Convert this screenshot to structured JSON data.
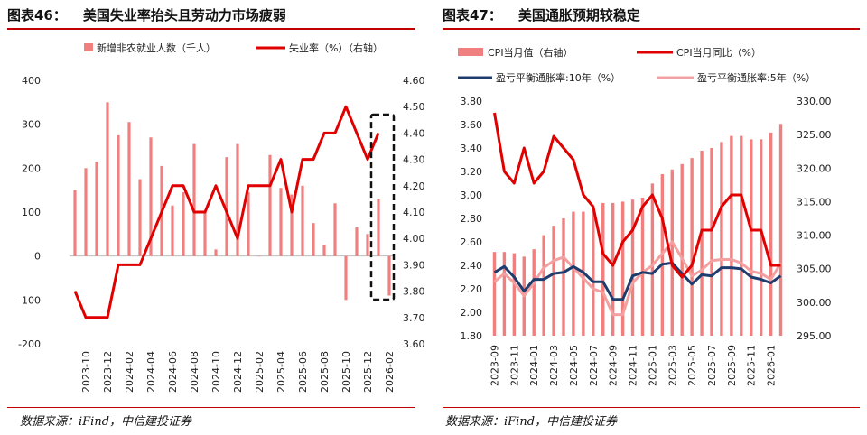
{
  "left": {
    "title_num": "图表46：",
    "title_text": "美国失业率抬头且劳动力市场疲弱",
    "source": "数据来源：iFind，中信建投证券"
  },
  "right": {
    "title_num": "图表47：",
    "title_text": "美国通胀预期较稳定",
    "source": "数据来源：iFind，中信建投证券"
  },
  "colors": {
    "red": "#e00000",
    "pink": "#f08080",
    "navy": "#1f3c6e",
    "light_red": "#f4a0a0",
    "accent_rule": "#c00000"
  },
  "chart_data": [
    {
      "type": "bar+line",
      "legend": [
        "新增非农就业人数（千人）",
        "失业率（%）（右轴）"
      ],
      "categories": [
        "2023-09",
        "2023-10",
        "2023-11",
        "2023-12",
        "2024-01",
        "2024-02",
        "2024-03",
        "2024-04",
        "2024-05",
        "2024-06",
        "2024-07",
        "2024-08",
        "2024-09",
        "2024-10",
        "2024-11",
        "2024-12",
        "2025-01",
        "2025-02",
        "2025-03",
        "2025-04",
        "2025-05",
        "2025-06",
        "2025-07",
        "2025-08",
        "2025-09",
        "2025-10",
        "2025-11",
        "2025-12",
        "2026-01",
        "2026-02"
      ],
      "x_tick_labels": [
        "2023-10",
        "2023-12",
        "2024-02",
        "2024-04",
        "2024-06",
        "2024-08",
        "2024-10",
        "2024-12",
        "2025-02",
        "2025-04",
        "2025-06",
        "2025-08",
        "2025-10",
        "2025-12",
        "2026-02"
      ],
      "bar_series": {
        "name": "新增非农就业人数（千人）",
        "axis": "left",
        "values": [
          150,
          200,
          215,
          350,
          275,
          305,
          175,
          270,
          205,
          115,
          145,
          255,
          100,
          15,
          225,
          255,
          145,
          0,
          230,
          155,
          140,
          160,
          75,
          25,
          120,
          -100,
          65,
          50,
          130,
          -90
        ]
      },
      "line_series": {
        "name": "失业率（%）（右轴）",
        "axis": "right",
        "values": [
          3.8,
          3.7,
          3.7,
          3.7,
          3.9,
          3.9,
          3.9,
          4.0,
          4.1,
          4.2,
          4.2,
          4.1,
          4.1,
          4.2,
          4.1,
          4.0,
          4.2,
          4.2,
          4.2,
          4.3,
          4.1,
          4.3,
          4.3,
          4.4,
          4.4,
          4.5,
          4.4,
          4.3,
          4.4,
          null
        ]
      },
      "y_left": {
        "min": -200,
        "max": 400,
        "ticks": [
          "-200",
          "-100",
          "0",
          "100",
          "200",
          "300",
          "400"
        ]
      },
      "y_right": {
        "min": 3.6,
        "max": 4.6,
        "ticks": [
          "3.60",
          "3.70",
          "3.80",
          "3.90",
          "4.00",
          "4.10",
          "4.20",
          "4.30",
          "4.40",
          "4.50",
          "4.60"
        ]
      },
      "annotation": "dashed box highlighting last two months"
    },
    {
      "type": "bar+line",
      "legend": [
        "CPI当月值（右轴）",
        "CPI当月同比（%）",
        "盈亏平衡通胀率:10年（%）",
        "盈亏平衡通胀率:5年（%）"
      ],
      "categories": [
        "2023-09",
        "2023-10",
        "2023-11",
        "2023-12",
        "2024-01",
        "2024-02",
        "2024-03",
        "2024-04",
        "2024-05",
        "2024-06",
        "2024-07",
        "2024-08",
        "2024-09",
        "2024-10",
        "2024-11",
        "2024-12",
        "2025-01",
        "2025-02",
        "2025-03",
        "2025-04",
        "2025-05",
        "2025-06",
        "2025-07",
        "2025-08",
        "2025-09",
        "2025-10",
        "2025-11",
        "2025-12",
        "2026-01",
        "2026-02"
      ],
      "x_tick_labels": [
        "2023-09",
        "2023-11",
        "2024-01",
        "2024-03",
        "2024-05",
        "2024-07",
        "2024-09",
        "2024-11",
        "2025-01",
        "2025-03",
        "2025-05",
        "2025-07",
        "2025-09",
        "2025-11",
        "2026-01"
      ],
      "bar_series": {
        "name": "CPI当月值（右轴）",
        "axis": "right",
        "values": [
          307.5,
          307.5,
          307.3,
          306.8,
          307.9,
          310.0,
          311.4,
          312.5,
          313.5,
          313.5,
          313.6,
          314.8,
          314.8,
          315.0,
          315.3,
          315.6,
          317.7,
          319.1,
          319.8,
          320.6,
          321.5,
          322.6,
          323.0,
          323.9,
          324.8,
          324.8,
          324.3,
          324.3,
          325.3,
          326.6
        ]
      },
      "line_series": [
        {
          "name": "CPI当月同比（%）",
          "axis": "left",
          "values": [
            3.7,
            3.2,
            3.1,
            3.4,
            3.1,
            3.2,
            3.5,
            3.4,
            3.3,
            3.0,
            2.9,
            2.5,
            2.4,
            2.6,
            2.7,
            2.9,
            3.0,
            2.8,
            2.4,
            2.3,
            2.4,
            2.7,
            2.7,
            2.9,
            3.0,
            3.0,
            2.7,
            2.7,
            2.4,
            2.4
          ]
        },
        {
          "name": "盈亏平衡通胀率:10年（%）",
          "axis": "left",
          "values": [
            2.34,
            2.39,
            2.3,
            2.18,
            2.28,
            2.28,
            2.33,
            2.34,
            2.39,
            2.34,
            2.26,
            2.26,
            2.11,
            2.11,
            2.31,
            2.34,
            2.33,
            2.41,
            2.42,
            2.33,
            2.24,
            2.32,
            2.31,
            2.38,
            2.38,
            2.37,
            2.3,
            2.28,
            2.25,
            2.31
          ]
        },
        {
          "name": "盈亏平衡通胀率:5年（%）",
          "axis": "left",
          "values": [
            2.26,
            2.33,
            2.25,
            2.14,
            2.25,
            2.38,
            2.44,
            2.47,
            2.38,
            2.29,
            2.2,
            2.17,
            1.98,
            1.98,
            2.25,
            2.34,
            2.4,
            2.5,
            2.6,
            2.46,
            2.31,
            2.36,
            2.44,
            2.45,
            2.45,
            2.42,
            2.35,
            2.33,
            2.28,
            2.42
          ]
        }
      ],
      "y_left": {
        "min": 1.8,
        "max": 3.8,
        "ticks": [
          "1.80",
          "2.00",
          "2.20",
          "2.40",
          "2.60",
          "2.80",
          "3.00",
          "3.20",
          "3.40",
          "3.60",
          "3.80"
        ]
      },
      "y_right": {
        "min": 295,
        "max": 330,
        "ticks": [
          "295.00",
          "300.00",
          "305.00",
          "310.00",
          "315.00",
          "320.00",
          "325.00",
          "330.00"
        ]
      }
    }
  ]
}
